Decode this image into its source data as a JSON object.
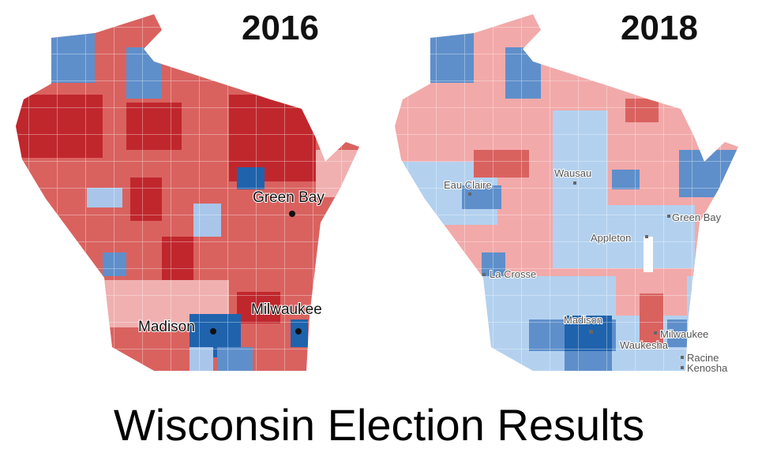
{
  "title": "Wisconsin Election Results",
  "maps": [
    {
      "year": "2016",
      "cities": [
        "Green Bay",
        "Milwaukee",
        "Madison"
      ]
    },
    {
      "year": "2018",
      "cities": [
        "Eau Claire",
        "Wausau",
        "Green Bay",
        "Appleton",
        "La Crosse",
        "Madison",
        "Milwaukee",
        "Waukesha",
        "Racine",
        "Kenosha"
      ]
    }
  ]
}
